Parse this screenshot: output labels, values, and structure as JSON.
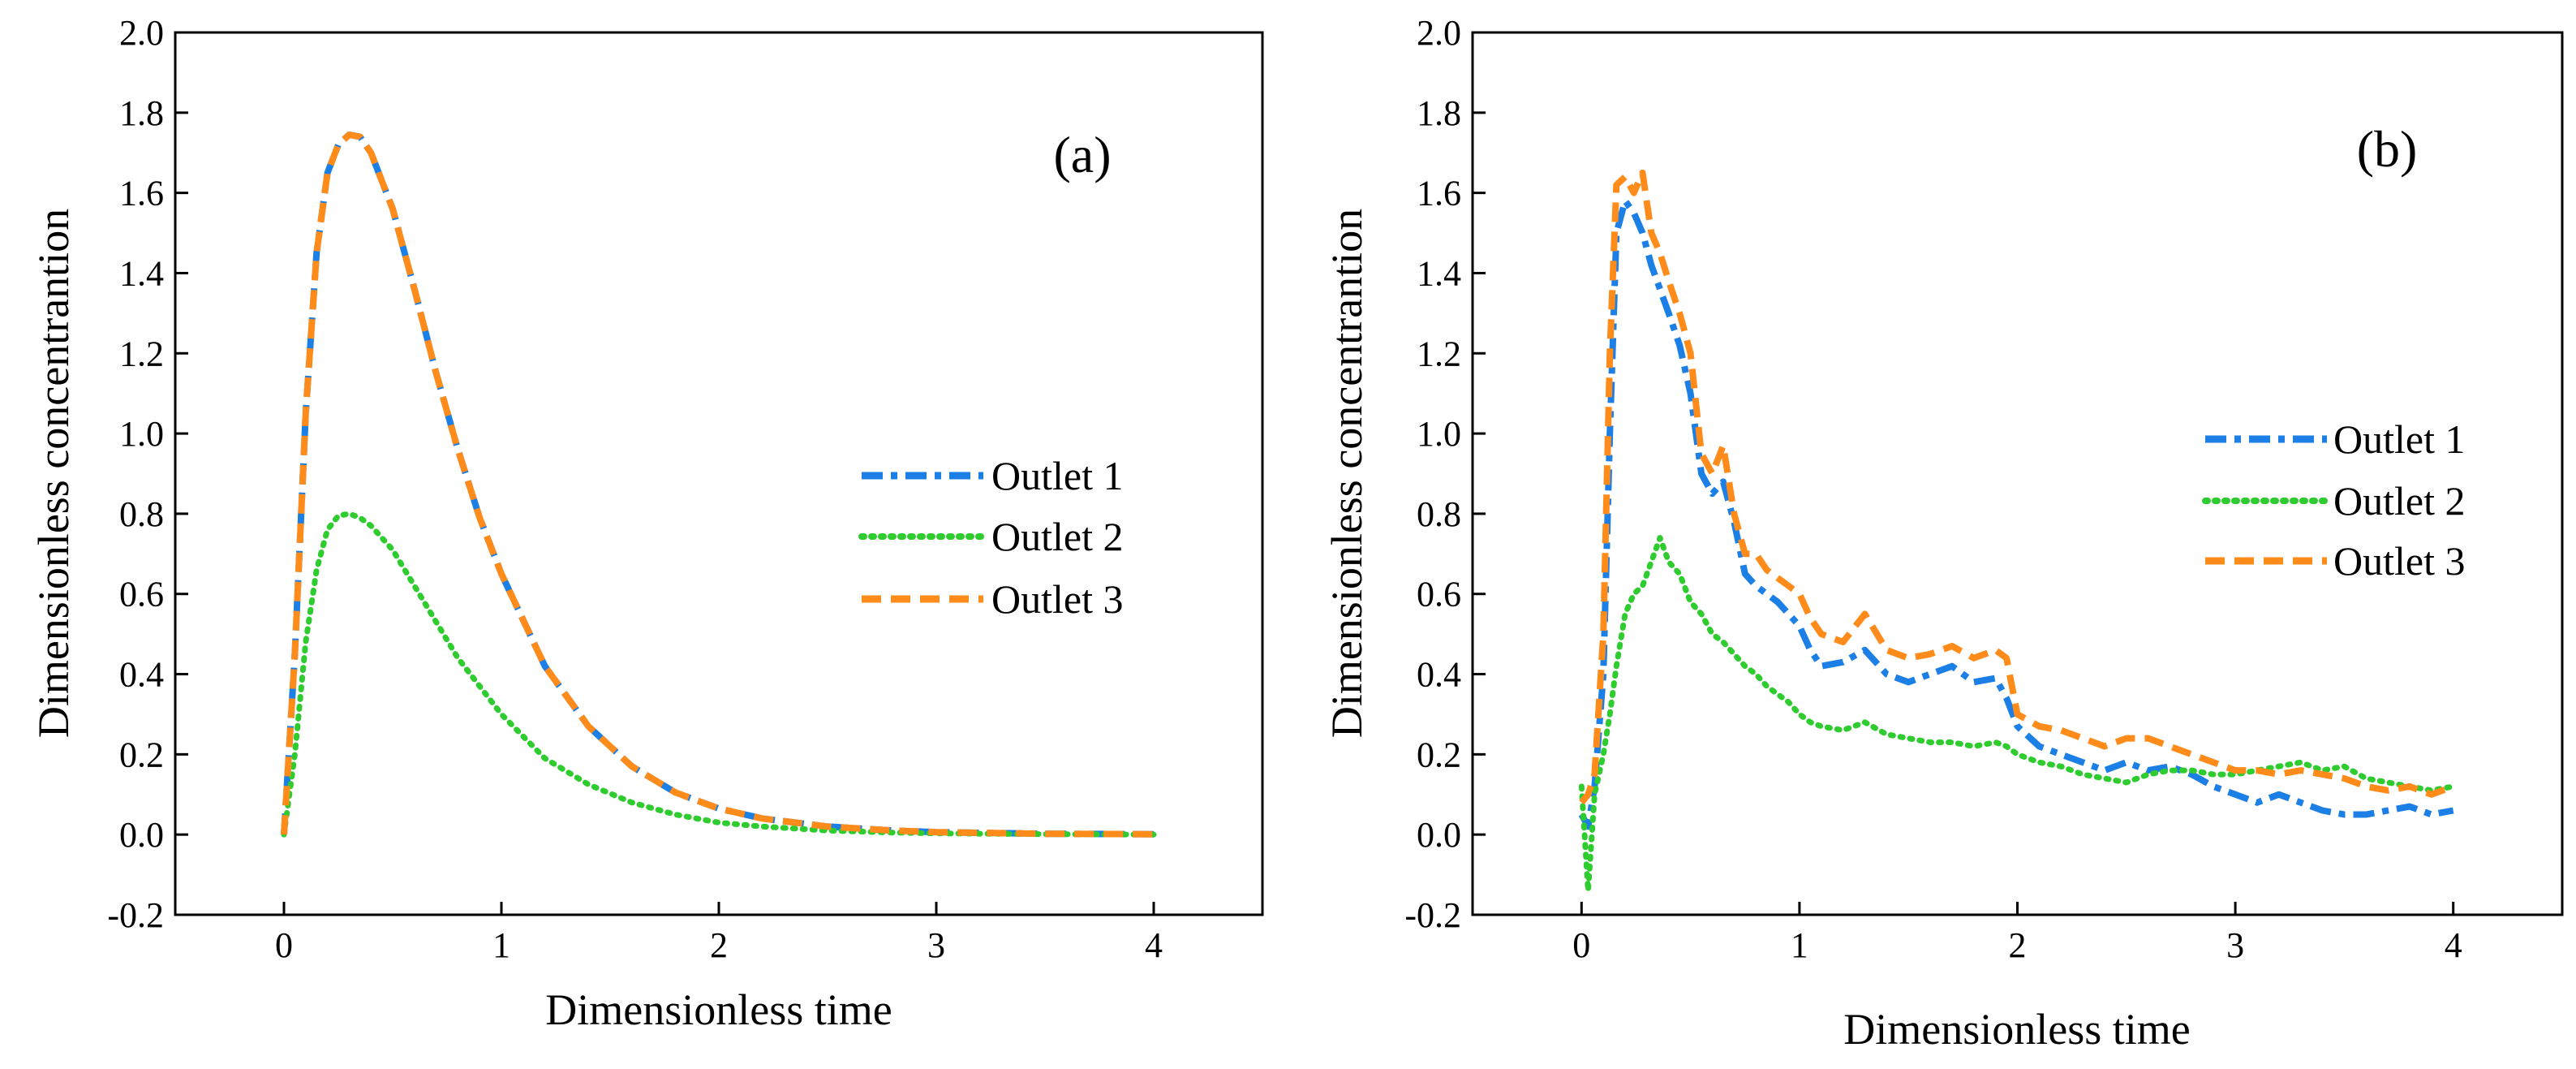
{
  "figure": {
    "panels_count": 2
  },
  "chart_data": [
    {
      "type": "line",
      "panel_label": "(a)",
      "xlabel": "Dimensionless time",
      "ylabel": "Dimensionless concentrantion",
      "xlim": [
        -0.5,
        4.5
      ],
      "ylim": [
        -0.2,
        2.0
      ],
      "xticks": [
        0,
        1,
        2,
        3,
        4
      ],
      "xtick_labels": [
        "0",
        "1",
        "2",
        "3",
        "4"
      ],
      "yticks": [
        -0.2,
        0.0,
        0.2,
        0.4,
        0.6,
        0.8,
        1.0,
        1.2,
        1.4,
        1.6,
        1.8,
        2.0
      ],
      "ytick_labels": [
        "-0.2",
        "0.0",
        "0.2",
        "0.4",
        "0.6",
        "0.8",
        "1.0",
        "1.2",
        "1.4",
        "1.6",
        "1.8",
        "2.0"
      ],
      "grid": false,
      "legend_position": "center-right",
      "x": [
        0,
        0.05,
        0.1,
        0.15,
        0.2,
        0.25,
        0.3,
        0.35,
        0.4,
        0.5,
        0.6,
        0.7,
        0.8,
        0.9,
        1.0,
        1.2,
        1.4,
        1.6,
        1.8,
        2.0,
        2.2,
        2.5,
        2.8,
        3.0,
        3.5,
        4.0
      ],
      "series": [
        {
          "name": "Outlet 1",
          "color": "#1c7fe6",
          "style": "dashdot",
          "values": [
            0,
            0.45,
            1.05,
            1.45,
            1.65,
            1.72,
            1.745,
            1.74,
            1.7,
            1.56,
            1.36,
            1.15,
            0.96,
            0.79,
            0.65,
            0.42,
            0.27,
            0.17,
            0.105,
            0.065,
            0.04,
            0.02,
            0.01,
            0.006,
            0.002,
            0.001
          ]
        },
        {
          "name": "Outlet 2",
          "color": "#2fcc2f",
          "style": "dotted",
          "values": [
            0,
            0.2,
            0.48,
            0.66,
            0.76,
            0.795,
            0.8,
            0.79,
            0.77,
            0.71,
            0.62,
            0.53,
            0.44,
            0.37,
            0.3,
            0.19,
            0.125,
            0.08,
            0.05,
            0.03,
            0.02,
            0.01,
            0.005,
            0.003,
            0.001,
            0.0
          ]
        },
        {
          "name": "Outlet 3",
          "color": "#ff8c1a",
          "style": "dashed",
          "values": [
            0,
            0.45,
            1.05,
            1.45,
            1.65,
            1.72,
            1.745,
            1.74,
            1.7,
            1.56,
            1.36,
            1.15,
            0.96,
            0.79,
            0.65,
            0.42,
            0.27,
            0.17,
            0.105,
            0.065,
            0.04,
            0.02,
            0.01,
            0.006,
            0.002,
            0.001
          ]
        }
      ]
    },
    {
      "type": "line",
      "panel_label": "(b)",
      "xlabel": "Dimensionless time",
      "ylabel": "Dimensionless concentrantion",
      "xlim": [
        -0.5,
        4.5
      ],
      "ylim": [
        -0.2,
        2.0
      ],
      "xticks": [
        0,
        1,
        2,
        3,
        4
      ],
      "xtick_labels": [
        "0",
        "1",
        "2",
        "3",
        "4"
      ],
      "yticks": [
        -0.2,
        0.0,
        0.2,
        0.4,
        0.6,
        0.8,
        1.0,
        1.2,
        1.4,
        1.6,
        1.8,
        2.0
      ],
      "ytick_labels": [
        "-0.2",
        "0.0",
        "0.2",
        "0.4",
        "0.6",
        "0.8",
        "1.0",
        "1.2",
        "1.4",
        "1.6",
        "1.8",
        "2.0"
      ],
      "grid": false,
      "legend_position": "center-right",
      "series": [
        {
          "name": "Outlet 1",
          "color": "#1c7fe6",
          "style": "dashdot",
          "x": [
            0,
            0.03,
            0.06,
            0.1,
            0.13,
            0.16,
            0.2,
            0.24,
            0.28,
            0.32,
            0.36,
            0.4,
            0.45,
            0.5,
            0.55,
            0.6,
            0.65,
            0.7,
            0.75,
            0.8,
            0.85,
            0.9,
            0.95,
            1.0,
            1.05,
            1.1,
            1.2,
            1.3,
            1.4,
            1.5,
            1.6,
            1.7,
            1.8,
            1.9,
            1.95,
            2.0,
            2.1,
            2.2,
            2.3,
            2.4,
            2.5,
            2.6,
            2.7,
            2.8,
            2.9,
            3.0,
            3.1,
            3.2,
            3.3,
            3.4,
            3.5,
            3.6,
            3.7,
            3.8,
            3.9,
            4.0
          ],
          "values": [
            0.05,
            0.02,
            0.12,
            0.4,
            1.0,
            1.5,
            1.58,
            1.55,
            1.5,
            1.42,
            1.36,
            1.3,
            1.22,
            1.1,
            0.9,
            0.85,
            0.88,
            0.78,
            0.65,
            0.62,
            0.6,
            0.58,
            0.55,
            0.52,
            0.46,
            0.42,
            0.43,
            0.46,
            0.4,
            0.38,
            0.4,
            0.42,
            0.38,
            0.39,
            0.34,
            0.27,
            0.22,
            0.2,
            0.18,
            0.16,
            0.18,
            0.16,
            0.17,
            0.15,
            0.12,
            0.1,
            0.08,
            0.1,
            0.08,
            0.06,
            0.05,
            0.05,
            0.06,
            0.07,
            0.05,
            0.06
          ]
        },
        {
          "name": "Outlet 2",
          "color": "#2fcc2f",
          "style": "dotted",
          "x": [
            0,
            0.03,
            0.06,
            0.1,
            0.13,
            0.16,
            0.2,
            0.24,
            0.28,
            0.32,
            0.36,
            0.4,
            0.45,
            0.5,
            0.55,
            0.6,
            0.65,
            0.7,
            0.75,
            0.8,
            0.85,
            0.9,
            0.95,
            1.0,
            1.05,
            1.1,
            1.2,
            1.3,
            1.4,
            1.5,
            1.6,
            1.7,
            1.8,
            1.9,
            1.95,
            2.0,
            2.1,
            2.2,
            2.3,
            2.4,
            2.5,
            2.6,
            2.7,
            2.8,
            2.9,
            3.0,
            3.1,
            3.2,
            3.3,
            3.4,
            3.5,
            3.6,
            3.7,
            3.8,
            3.9,
            4.0
          ],
          "values": [
            0.12,
            -0.14,
            0.1,
            0.2,
            0.3,
            0.42,
            0.55,
            0.6,
            0.62,
            0.68,
            0.74,
            0.68,
            0.65,
            0.58,
            0.55,
            0.5,
            0.48,
            0.45,
            0.42,
            0.4,
            0.37,
            0.35,
            0.33,
            0.3,
            0.28,
            0.27,
            0.26,
            0.28,
            0.25,
            0.24,
            0.23,
            0.23,
            0.22,
            0.23,
            0.22,
            0.2,
            0.18,
            0.17,
            0.15,
            0.14,
            0.13,
            0.15,
            0.16,
            0.16,
            0.15,
            0.15,
            0.16,
            0.17,
            0.18,
            0.16,
            0.17,
            0.14,
            0.13,
            0.12,
            0.11,
            0.12
          ]
        },
        {
          "name": "Outlet 3",
          "color": "#ff8c1a",
          "style": "dashed",
          "x": [
            0,
            0.03,
            0.06,
            0.1,
            0.13,
            0.16,
            0.2,
            0.24,
            0.28,
            0.32,
            0.36,
            0.4,
            0.45,
            0.5,
            0.55,
            0.6,
            0.65,
            0.7,
            0.75,
            0.8,
            0.85,
            0.9,
            0.95,
            1.0,
            1.05,
            1.1,
            1.2,
            1.3,
            1.4,
            1.5,
            1.6,
            1.7,
            1.8,
            1.9,
            1.95,
            2.0,
            2.1,
            2.2,
            2.3,
            2.4,
            2.5,
            2.6,
            2.7,
            2.8,
            2.9,
            3.0,
            3.1,
            3.2,
            3.3,
            3.4,
            3.5,
            3.6,
            3.7,
            3.8,
            3.9,
            4.0
          ],
          "values": [
            0.08,
            0.1,
            0.15,
            0.5,
            1.2,
            1.62,
            1.64,
            1.6,
            1.65,
            1.5,
            1.45,
            1.38,
            1.3,
            1.2,
            0.95,
            0.9,
            0.97,
            0.8,
            0.7,
            0.7,
            0.66,
            0.64,
            0.62,
            0.6,
            0.54,
            0.5,
            0.48,
            0.55,
            0.46,
            0.44,
            0.45,
            0.47,
            0.44,
            0.46,
            0.44,
            0.3,
            0.27,
            0.26,
            0.24,
            0.22,
            0.24,
            0.24,
            0.22,
            0.2,
            0.18,
            0.16,
            0.16,
            0.15,
            0.16,
            0.15,
            0.14,
            0.12,
            0.11,
            0.12,
            0.1,
            0.12
          ]
        }
      ]
    }
  ]
}
